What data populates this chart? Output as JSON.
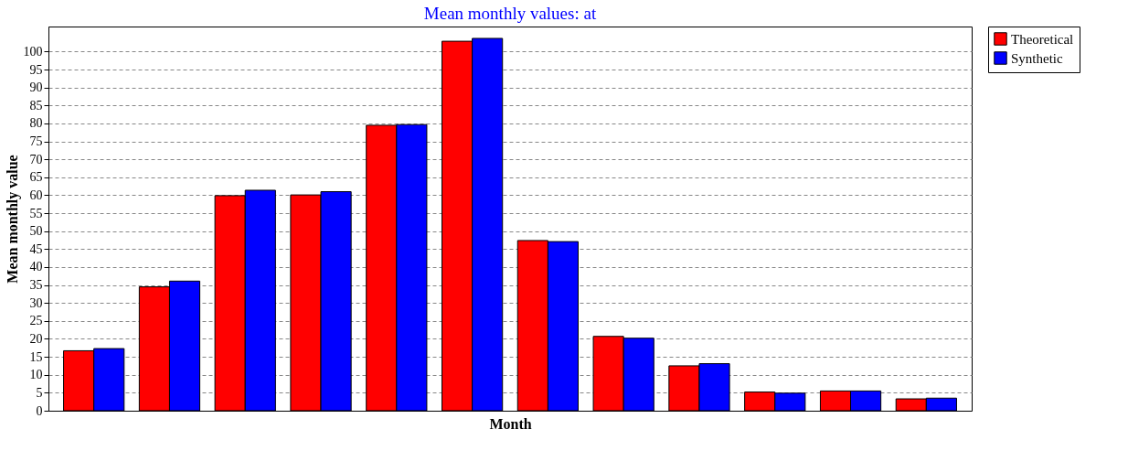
{
  "chart_data": {
    "type": "bar",
    "title": "Mean monthly values:  at",
    "xlabel": "Month",
    "ylabel": "Mean monthly value",
    "categories": [
      null,
      null,
      null,
      null,
      null,
      null,
      null,
      null,
      null,
      null,
      null,
      null
    ],
    "series": [
      {
        "name": "Theoretical",
        "color": "#ff0000",
        "values": [
          16.7,
          34.5,
          59.9,
          60.1,
          79.5,
          102.9,
          47.4,
          20.7,
          12.5,
          5.2,
          5.5,
          3.3
        ]
      },
      {
        "name": "Synthetic",
        "color": "#0000ff",
        "values": [
          17.3,
          36.1,
          61.4,
          61.0,
          79.7,
          103.7,
          47.1,
          20.2,
          13.1,
          4.9,
          5.5,
          3.5
        ]
      }
    ],
    "ylim": [
      0,
      107
    ],
    "yticks": [
      0,
      5,
      10,
      15,
      20,
      25,
      30,
      35,
      40,
      45,
      50,
      55,
      60,
      65,
      70,
      75,
      80,
      85,
      90,
      95,
      100
    ],
    "grid": "y",
    "legend": "top right"
  }
}
